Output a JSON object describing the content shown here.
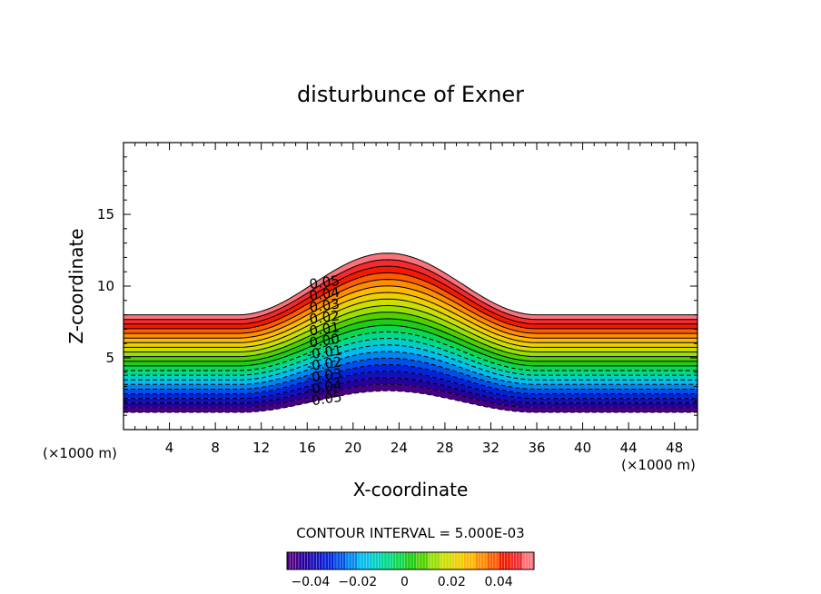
{
  "chart_data": {
    "type": "contour",
    "title": "disturbunce of Exner",
    "xlabel": "X-coordinate",
    "ylabel": "Z-coordinate",
    "x_unit_label": "(×1000 m)",
    "xlim": [
      0,
      50
    ],
    "ylim": [
      0,
      20
    ],
    "xticks": [
      4,
      8,
      12,
      16,
      20,
      24,
      28,
      32,
      36,
      40,
      44,
      48
    ],
    "yticks": [
      5,
      10,
      15
    ],
    "field": {
      "min": -0.05,
      "max": 0.055,
      "interval": 0.005,
      "bottom_height_at": [
        [
          0,
          1.2
        ],
        [
          23,
          2.7
        ],
        [
          50,
          1.2
        ]
      ],
      "top_height_at": [
        [
          0,
          8.0
        ],
        [
          23,
          12.3
        ],
        [
          50,
          8.0
        ]
      ],
      "terrain_crest_x": 23
    },
    "contour_labels": [
      "0.05",
      "0.04",
      "0.03",
      "0.02",
      "0.01",
      "0.00",
      "-0.01",
      "-0.02",
      "-0.03",
      "-0.04",
      "-0.05"
    ],
    "contour_interval_text": "CONTOUR INTERVAL = 5.000E-03",
    "colorbar": {
      "min": -0.05,
      "max": 0.055,
      "tick_values": [
        -0.04,
        -0.02,
        0,
        0.02,
        0.04
      ],
      "tick_labels": [
        "−0.04",
        "−0.02",
        "0",
        "0.02",
        "0.04"
      ]
    },
    "grid": false,
    "legend": "colorbar-bottom"
  }
}
